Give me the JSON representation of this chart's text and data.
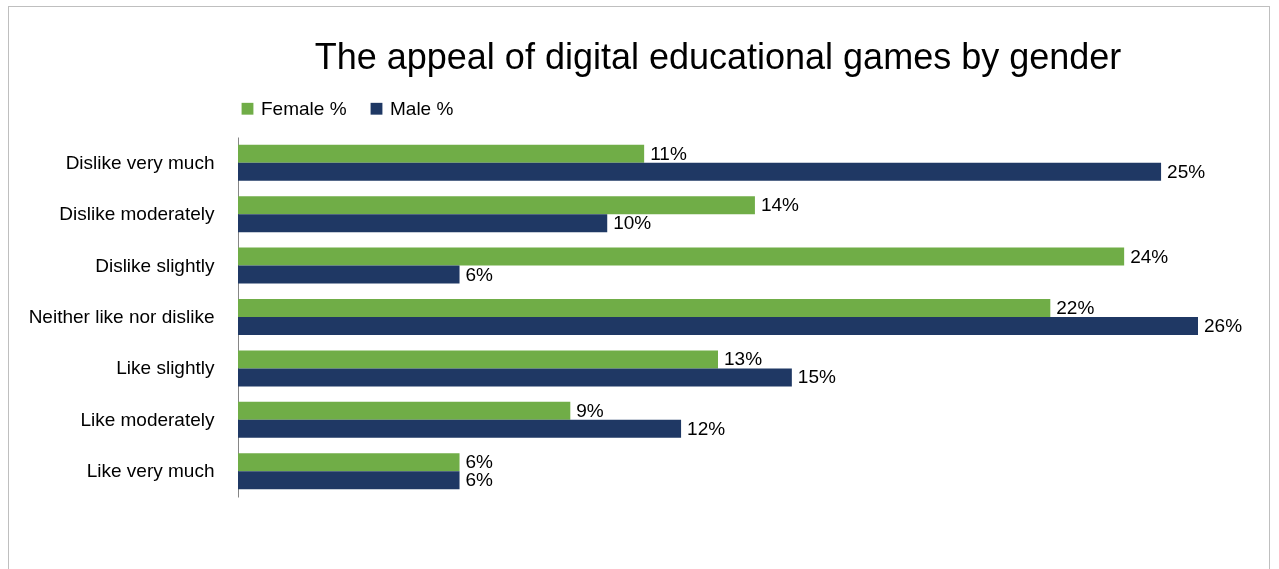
{
  "chart_data": {
    "type": "bar",
    "orientation": "horizontal",
    "title": "The appeal of digital educational games by gender",
    "categories": [
      "Dislike very much",
      "Dislike moderately",
      "Dislike slightly",
      "Neither like nor dislike",
      "Like slightly",
      "Like moderately",
      "Like very much"
    ],
    "series": [
      {
        "name": "Female %",
        "color": "#70ad47",
        "values": [
          11,
          14,
          24,
          22,
          13,
          9,
          6
        ],
        "value_labels": [
          "11%",
          "14%",
          "24%",
          "22%",
          "13%",
          "9%",
          "6%"
        ]
      },
      {
        "name": "Male %",
        "color": "#1f3864",
        "values": [
          25,
          10,
          6,
          26,
          15,
          12,
          6
        ],
        "value_labels": [
          "25%",
          "10%",
          "6%",
          "26%",
          "15%",
          "12%",
          "6%"
        ]
      }
    ],
    "legend": "top",
    "grid": false,
    "tick_labels": "y"
  }
}
